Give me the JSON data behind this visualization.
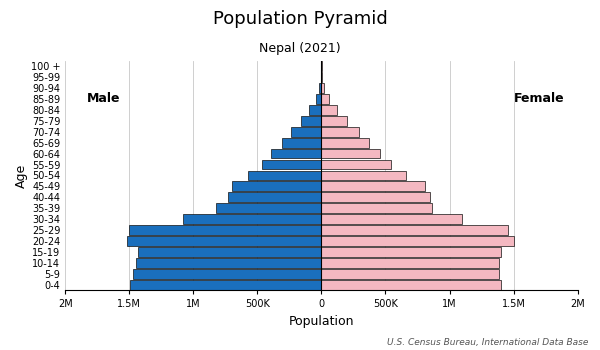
{
  "title": "Population Pyramid",
  "subtitle": "Nepal (2021)",
  "source": "U.S. Census Bureau, International Data Base",
  "xlabel": "Population",
  "ylabel": "Age",
  "age_groups": [
    "0-4",
    "5-9",
    "10-14",
    "15-19",
    "20-24",
    "25-29",
    "30-34",
    "35-39",
    "40-44",
    "45-49",
    "50-54",
    "55-59",
    "60-64",
    "65-69",
    "70-74",
    "75-79",
    "80-84",
    "85-89",
    "90-94",
    "95-99",
    "100 +"
  ],
  "male": [
    1490000,
    1470000,
    1450000,
    1430000,
    1520000,
    1500000,
    1080000,
    820000,
    730000,
    700000,
    570000,
    460000,
    390000,
    310000,
    240000,
    160000,
    95000,
    45000,
    17000,
    5000,
    1500
  ],
  "female": [
    1400000,
    1390000,
    1390000,
    1400000,
    1500000,
    1460000,
    1100000,
    860000,
    850000,
    810000,
    660000,
    540000,
    460000,
    370000,
    290000,
    200000,
    125000,
    63000,
    24000,
    7500,
    2000
  ],
  "male_color": "#1a6fbd",
  "female_color": "#f4b8c1",
  "bar_edge_color": "#111111",
  "bar_edge_width": 0.5,
  "xlim": 2000000,
  "xtick_positions": [
    -2000000,
    -1500000,
    -1000000,
    -500000,
    0,
    500000,
    1000000,
    1500000,
    2000000
  ],
  "xtick_labels": [
    "2M",
    "1.5M",
    "1M",
    "500K",
    "0",
    "500K",
    "1M",
    "1.5M",
    "2M"
  ],
  "title_fontsize": 13,
  "subtitle_fontsize": 9,
  "label_fontsize": 9,
  "tick_fontsize": 7,
  "source_fontsize": 6.5,
  "male_label": "Male",
  "female_label": "Female",
  "background_color": "#ffffff",
  "grid_color": "#c8c8c8"
}
